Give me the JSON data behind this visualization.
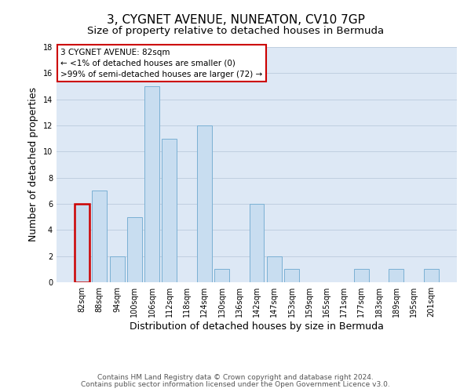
{
  "title": "3, CYGNET AVENUE, NUNEATON, CV10 7GP",
  "subtitle": "Size of property relative to detached houses in Bermuda",
  "xlabel": "Distribution of detached houses by size in Bermuda",
  "ylabel": "Number of detached properties",
  "bar_labels": [
    "82sqm",
    "88sqm",
    "94sqm",
    "100sqm",
    "106sqm",
    "112sqm",
    "118sqm",
    "124sqm",
    "130sqm",
    "136sqm",
    "142sqm",
    "147sqm",
    "153sqm",
    "159sqm",
    "165sqm",
    "171sqm",
    "177sqm",
    "183sqm",
    "189sqm",
    "195sqm",
    "201sqm"
  ],
  "bar_values": [
    6,
    7,
    2,
    5,
    15,
    11,
    0,
    12,
    1,
    0,
    6,
    2,
    1,
    0,
    0,
    0,
    1,
    0,
    1,
    0,
    1
  ],
  "bar_color": "#c8ddf0",
  "bar_edge_color": "#7ab0d4",
  "highlight_index": 0,
  "highlight_bar_edge_color": "#cc0000",
  "annotation_title": "3 CYGNET AVENUE: 82sqm",
  "annotation_line1": "← <1% of detached houses are smaller (0)",
  "annotation_line2": ">99% of semi-detached houses are larger (72) →",
  "annotation_box_color": "#ffffff",
  "annotation_box_edge_color": "#cc0000",
  "ylim": [
    0,
    18
  ],
  "yticks": [
    0,
    2,
    4,
    6,
    8,
    10,
    12,
    14,
    16,
    18
  ],
  "footnote1": "Contains HM Land Registry data © Crown copyright and database right 2024.",
  "footnote2": "Contains public sector information licensed under the Open Government Licence v3.0.",
  "background_color": "#ffffff",
  "plot_bg_color": "#dde8f5",
  "grid_color": "#c0cfe0",
  "title_fontsize": 11,
  "subtitle_fontsize": 9.5,
  "axis_label_fontsize": 9,
  "tick_fontsize": 7,
  "annotation_fontsize": 7.5,
  "footnote_fontsize": 6.5
}
